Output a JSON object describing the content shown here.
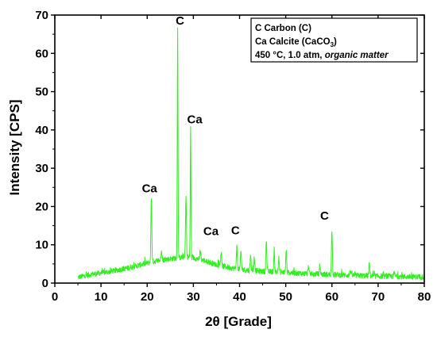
{
  "chart_data": {
    "type": "line",
    "title": "",
    "xlabel": "2θ [Grade]",
    "ylabel": "Intensity [CPS]",
    "xlim": [
      0,
      80
    ],
    "ylim": [
      0,
      70
    ],
    "x_ticks": [
      0,
      10,
      20,
      30,
      40,
      50,
      60,
      70,
      80
    ],
    "y_ticks": [
      0,
      10,
      20,
      30,
      40,
      50,
      60,
      70
    ],
    "grid": false,
    "legend_position": "top-right",
    "series_color": "#33ee22",
    "x_range": [
      5,
      80
    ],
    "baseline": [
      [
        5,
        1.5
      ],
      [
        8,
        2.3
      ],
      [
        12,
        3.0
      ],
      [
        16,
        4.0
      ],
      [
        20,
        5.2
      ],
      [
        23,
        6.0
      ],
      [
        26,
        6.5
      ],
      [
        28,
        6.8
      ],
      [
        30,
        6.6
      ],
      [
        32,
        6.0
      ],
      [
        35,
        4.8
      ],
      [
        38,
        4.0
      ],
      [
        42,
        3.3
      ],
      [
        46,
        3.0
      ],
      [
        50,
        2.8
      ],
      [
        55,
        2.4
      ],
      [
        60,
        2.2
      ],
      [
        65,
        2.0
      ],
      [
        70,
        1.8
      ],
      [
        75,
        1.7
      ],
      [
        80,
        1.6
      ]
    ],
    "peaks": [
      {
        "x": 20.9,
        "y": 22.3
      },
      {
        "x": 23.1,
        "y": 9.0
      },
      {
        "x": 26.6,
        "y": 67.0
      },
      {
        "x": 28.4,
        "y": 22.5
      },
      {
        "x": 29.4,
        "y": 40.8
      },
      {
        "x": 31.5,
        "y": 8.5
      },
      {
        "x": 36.0,
        "y": 8.0
      },
      {
        "x": 39.4,
        "y": 9.5
      },
      {
        "x": 40.3,
        "y": 8.3
      },
      {
        "x": 42.4,
        "y": 7.5
      },
      {
        "x": 43.2,
        "y": 6.8
      },
      {
        "x": 45.8,
        "y": 11.3
      },
      {
        "x": 47.5,
        "y": 7.8
      },
      {
        "x": 48.5,
        "y": 6.5
      },
      {
        "x": 50.1,
        "y": 8.7
      },
      {
        "x": 54.9,
        "y": 4.5
      },
      {
        "x": 57.4,
        "y": 4.6
      },
      {
        "x": 60.0,
        "y": 14.0
      },
      {
        "x": 64.0,
        "y": 3.5
      },
      {
        "x": 68.1,
        "y": 5.2
      },
      {
        "x": 73.5,
        "y": 2.8
      }
    ],
    "peak_labels": [
      {
        "text": "C",
        "x": 27.1,
        "y": 67.5
      },
      {
        "text": "Ca",
        "x": 30.3,
        "y": 41.7
      },
      {
        "text": "Ca",
        "x": 20.5,
        "y": 23.7
      },
      {
        "text": "Ca",
        "x": 33.8,
        "y": 12.5
      },
      {
        "text": "C",
        "x": 39.1,
        "y": 12.7
      },
      {
        "text": "C",
        "x": 58.4,
        "y": 16.6
      }
    ],
    "legend": {
      "line1": "C Carbon (C)",
      "line2_main": "Ca Calcite (CaCO",
      "line2_sub": "3",
      "line2_end": ")",
      "line3_main": "450 °C, 1.0 atm, ",
      "line3_italic": "organic matter"
    }
  }
}
